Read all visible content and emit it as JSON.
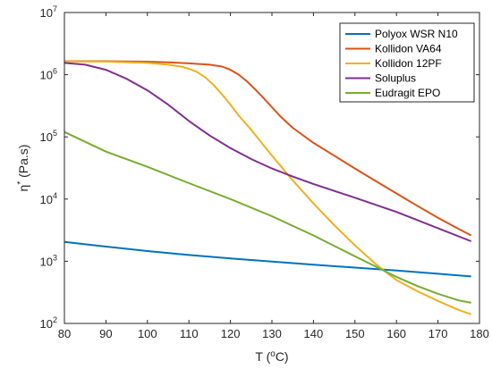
{
  "chart_data": {
    "type": "line",
    "xlabel": "T (°C)",
    "ylabel": "η* (Pa.s)",
    "xlim": [
      80,
      180
    ],
    "ylim": [
      100,
      10000000
    ],
    "yscale": "log",
    "grid": false,
    "legend_position": "top-right",
    "x_ticks": [
      {
        "value": 80,
        "label": "80"
      },
      {
        "value": 90,
        "label": "90"
      },
      {
        "value": 100,
        "label": "100"
      },
      {
        "value": 110,
        "label": "110"
      },
      {
        "value": 120,
        "label": "120"
      },
      {
        "value": 130,
        "label": "130"
      },
      {
        "value": 140,
        "label": "140"
      },
      {
        "value": 150,
        "label": "150"
      },
      {
        "value": 160,
        "label": "160"
      },
      {
        "value": 170,
        "label": "170"
      },
      {
        "value": 180,
        "label": "180"
      }
    ],
    "y_ticks": [
      {
        "value": 100,
        "base": "10",
        "exp": "2"
      },
      {
        "value": 1000,
        "base": "10",
        "exp": "3"
      },
      {
        "value": 10000,
        "base": "10",
        "exp": "4"
      },
      {
        "value": 100000,
        "base": "10",
        "exp": "5"
      },
      {
        "value": 1000000,
        "base": "10",
        "exp": "6"
      },
      {
        "value": 10000000,
        "base": "10",
        "exp": "7"
      }
    ],
    "series": [
      {
        "name": "Polyox WSR N10",
        "color": "#0072BD",
        "x": [
          80,
          90,
          100,
          110,
          120,
          130,
          140,
          150,
          160,
          170,
          178
        ],
        "y": [
          2050,
          1720,
          1460,
          1260,
          1110,
          990,
          880,
          790,
          710,
          630,
          570
        ]
      },
      {
        "name": "Kollidon VA64",
        "color": "#D95319",
        "x": [
          80,
          90,
          100,
          105,
          110,
          115,
          118,
          120,
          122,
          124,
          126,
          128,
          130,
          132,
          135,
          140,
          145,
          150,
          155,
          160,
          165,
          170,
          175,
          178
        ],
        "y": [
          1650000,
          1650000,
          1620000,
          1580000,
          1520000,
          1450000,
          1350000,
          1200000,
          1000000,
          780000,
          580000,
          420000,
          300000,
          215000,
          140000,
          80000,
          50000,
          31000,
          19500,
          12300,
          7800,
          5000,
          3300,
          2600
        ]
      },
      {
        "name": "Kollidon 12PF",
        "color": "#EDB120",
        "x": [
          80,
          90,
          100,
          105,
          108,
          110,
          112,
          114,
          116,
          118,
          120,
          122,
          125,
          130,
          135,
          140,
          145,
          150,
          155,
          160,
          165,
          170,
          175,
          178
        ],
        "y": [
          1630000,
          1620000,
          1550000,
          1450000,
          1350000,
          1250000,
          1100000,
          900000,
          680000,
          480000,
          330000,
          220000,
          130000,
          50000,
          20000,
          8500,
          3800,
          1800,
          900,
          500,
          330,
          230,
          165,
          140
        ]
      },
      {
        "name": "Soluplus",
        "color": "#7E2F8E",
        "x": [
          80,
          85,
          90,
          95,
          100,
          105,
          110,
          115,
          120,
          125,
          130,
          135,
          140,
          150,
          160,
          170,
          178
        ],
        "y": [
          1550000,
          1450000,
          1200000,
          860000,
          560000,
          330000,
          180000,
          105000,
          66000,
          44000,
          31000,
          23000,
          17500,
          10500,
          6200,
          3400,
          2100
        ]
      },
      {
        "name": "Eudragit EPO",
        "color": "#77AC30",
        "x": [
          80,
          90,
          100,
          110,
          120,
          130,
          140,
          150,
          160,
          165,
          170,
          175,
          178
        ],
        "y": [
          120000,
          58000,
          33000,
          18000,
          10000,
          5300,
          2600,
          1200,
          560,
          400,
          300,
          235,
          215
        ]
      }
    ]
  }
}
